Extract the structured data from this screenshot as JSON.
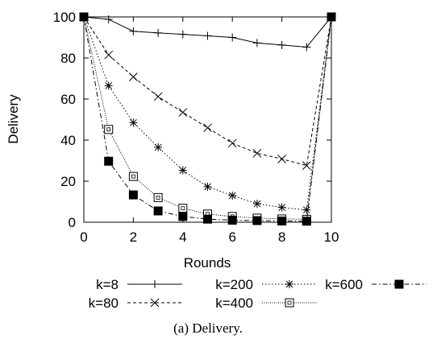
{
  "chart_data": {
    "type": "line",
    "title": "",
    "xlabel": "Rounds",
    "ylabel": "Delivery",
    "xlim": [
      0,
      10
    ],
    "ylim": [
      0,
      100
    ],
    "x_ticks": [
      "0",
      "2",
      "4",
      "6",
      "8",
      "10"
    ],
    "y_ticks": [
      "0",
      "20",
      "40",
      "60",
      "80",
      "100"
    ],
    "x": [
      0,
      1,
      2,
      3,
      4,
      5,
      6,
      7,
      8,
      9,
      10
    ],
    "grid": false,
    "legend_position": "bottom",
    "series": [
      {
        "name": "k=8",
        "marker": "plus",
        "dash": "solid",
        "values": [
          100,
          98.8,
          93,
          92.2,
          91.5,
          90.8,
          90,
          87.3,
          86.3,
          85.3,
          100
        ]
      },
      {
        "name": "k=80",
        "marker": "cross",
        "dash": "dashed",
        "values": [
          100,
          81.5,
          70.8,
          61.2,
          53.5,
          46,
          38.5,
          33.6,
          30.8,
          27.6,
          100
        ]
      },
      {
        "name": "k=200",
        "marker": "star",
        "dash": "dotted",
        "values": [
          100,
          66.5,
          48.5,
          36.5,
          25.3,
          17.3,
          13,
          9,
          7.2,
          6,
          100
        ]
      },
      {
        "name": "k=400",
        "marker": "open-square",
        "dash": "fine",
        "values": [
          100,
          45.2,
          22.3,
          12,
          6.8,
          4,
          2.8,
          2,
          1.6,
          1.4,
          100
        ]
      },
      {
        "name": "k=600",
        "marker": "filled-square",
        "dash": "dashdot",
        "values": [
          100,
          29.7,
          13.3,
          5.5,
          2.8,
          1.5,
          1,
          0.8,
          0.6,
          0.5,
          100
        ]
      }
    ],
    "caption": "(a) Delivery."
  }
}
